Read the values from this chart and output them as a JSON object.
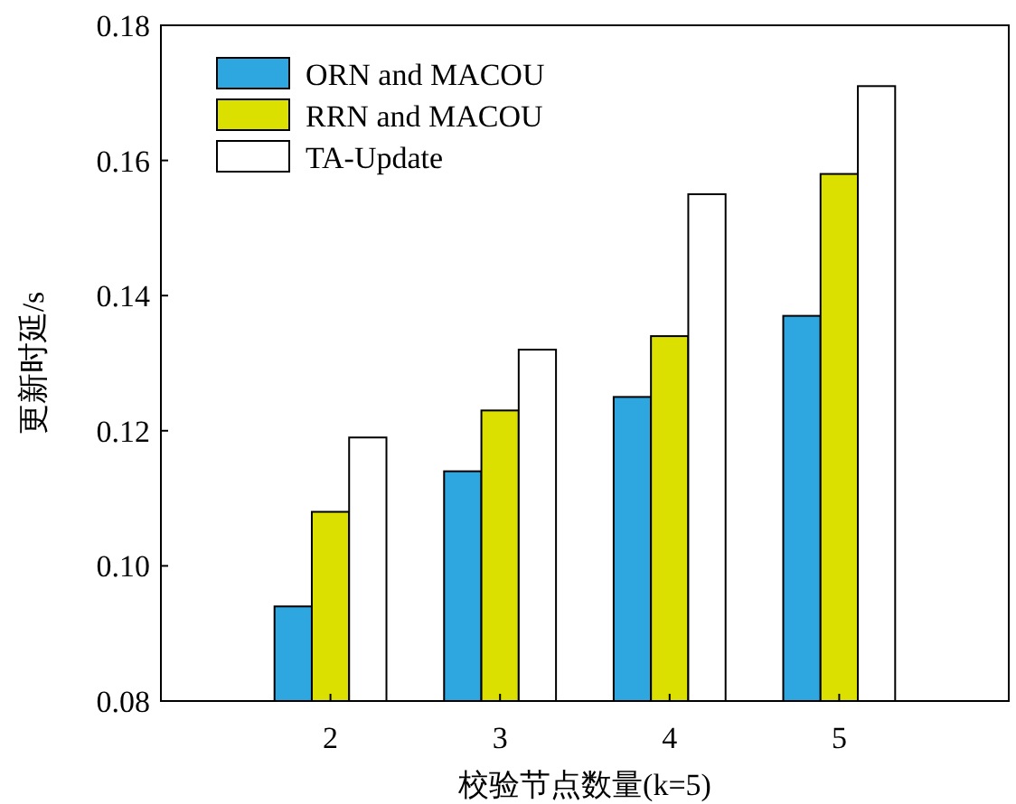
{
  "chart_data": {
    "type": "bar",
    "xlabel": "校验节点数量(k=5)",
    "ylabel": "更新时延/s",
    "categories": [
      "2",
      "3",
      "4",
      "5"
    ],
    "series": [
      {
        "name": "ORN and MACOU",
        "color": "#2ea7e0",
        "values": [
          0.094,
          0.114,
          0.125,
          0.137
        ]
      },
      {
        "name": "RRN and MACOU",
        "color": "#dbe000",
        "values": [
          0.108,
          0.123,
          0.134,
          0.158
        ]
      },
      {
        "name": "TA-Update",
        "color": "#ffffff",
        "values": [
          0.119,
          0.132,
          0.155,
          0.171
        ]
      }
    ],
    "ylim": [
      0.08,
      0.18
    ],
    "yticks": [
      {
        "value": 0.08,
        "label": "0.08"
      },
      {
        "value": 0.1,
        "label": "0.10"
      },
      {
        "value": 0.12,
        "label": "0.12"
      },
      {
        "value": 0.14,
        "label": "0.14"
      },
      {
        "value": 0.16,
        "label": "0.16"
      },
      {
        "value": 0.18,
        "label": "0.18"
      }
    ],
    "grid": false,
    "legend": "top left"
  }
}
